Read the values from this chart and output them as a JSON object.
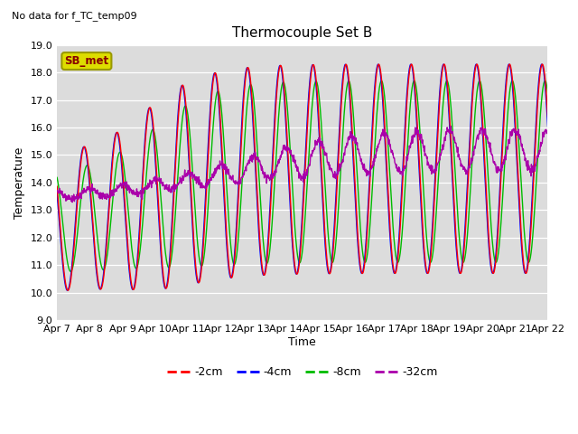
{
  "title": "Thermocouple Set B",
  "subtitle": "No data for f_TC_temp09",
  "ylabel": "Temperature",
  "xlabel": "Time",
  "ylim": [
    9.0,
    19.0
  ],
  "yticks": [
    9.0,
    10.0,
    11.0,
    12.0,
    13.0,
    14.0,
    15.0,
    16.0,
    17.0,
    18.0,
    19.0
  ],
  "xtick_labels": [
    "Apr 7",
    "Apr 8",
    "Apr 9",
    "Apr 10",
    "Apr 11",
    "Apr 12",
    "Apr 13",
    "Apr 14",
    "Apr 15",
    "Apr 16",
    "Apr 17",
    "Apr 18",
    "Apr 19",
    "Apr 20",
    "Apr 21",
    "Apr 22"
  ],
  "colors": {
    "2cm": "#ff0000",
    "4cm": "#0000ff",
    "8cm": "#00bb00",
    "32cm": "#aa00aa"
  },
  "legend_labels": [
    "-2cm",
    "-4cm",
    "-8cm",
    "-32cm"
  ],
  "bg_color": "#dcdcdc",
  "annotation_box": "SB_met",
  "annotation_box_facecolor": "#dddd00",
  "annotation_box_edgecolor": "#999900",
  "annotation_box_text_color": "#880000"
}
